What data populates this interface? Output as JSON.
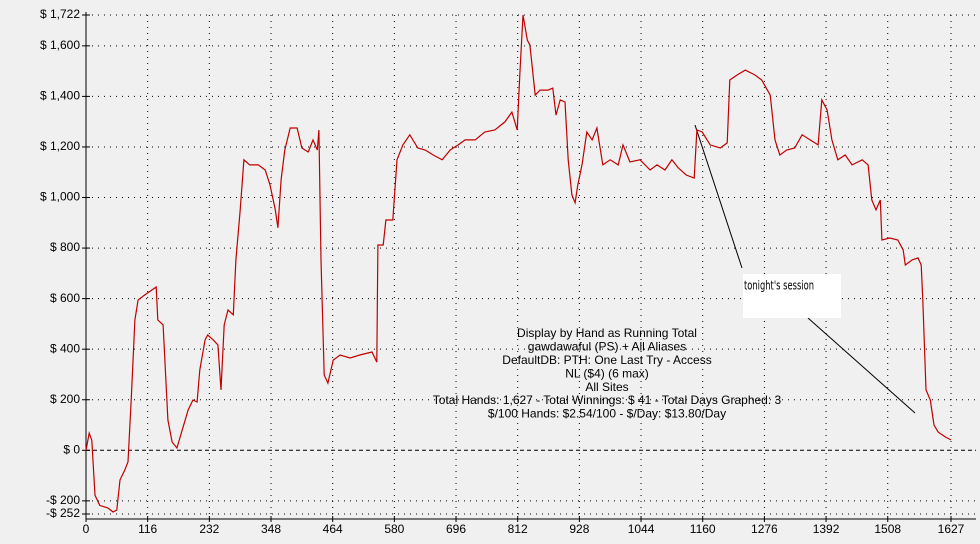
{
  "chart_data": {
    "type": "line",
    "annotations": [
      "Display by Hand as Running Total",
      "gawdawaful (PS) + All Aliases",
      "DefaultDB: PTH: One Last Try - Access",
      "NL ($4) (6 max)",
      "All Sites",
      "Total Hands: 1,627 - Total Winnings: $ 41 - Total Days Graphed: 3",
      "$/100 Hands: $2.54/100 - $/Day: $13.80/Day"
    ],
    "callout": "tonight's session",
    "xlim": [
      0,
      1627
    ],
    "xticks": [
      0,
      116,
      232,
      348,
      464,
      580,
      696,
      812,
      928,
      1044,
      1160,
      1276,
      1392,
      1508,
      1627
    ],
    "ylim": [
      -252,
      1722
    ],
    "yticks": [
      {
        "value": -252,
        "label": "-$ 252"
      },
      {
        "value": -200,
        "label": "-$ 200"
      },
      {
        "value": 0,
        "label": "$ 0"
      },
      {
        "value": 200,
        "label": "$ 200"
      },
      {
        "value": 400,
        "label": "$ 400"
      },
      {
        "value": 600,
        "label": "$ 600"
      },
      {
        "value": 800,
        "label": "$ 800"
      },
      {
        "value": 1000,
        "label": "$ 1,000"
      },
      {
        "value": 1200,
        "label": "$ 1,200"
      },
      {
        "value": 1400,
        "label": "$ 1,400"
      },
      {
        "value": 1600,
        "label": "$ 1,600"
      },
      {
        "value": 1722,
        "label": "$ 1,722"
      }
    ],
    "grid": true,
    "series": [
      {
        "color": "#c00000",
        "x": [
          0,
          6,
          11,
          17,
          26,
          41,
          51,
          58,
          64,
          73,
          79,
          85,
          92,
          98,
          111,
          124,
          132,
          135,
          145,
          154,
          162,
          171,
          181,
          192,
          201,
          209,
          214,
          224,
          229,
          239,
          248,
          254,
          260,
          267,
          277,
          282,
          290,
          297,
          308,
          324,
          337,
          346,
          356,
          361,
          367,
          374,
          384,
          397,
          406,
          418,
          427,
          435,
          438,
          442,
          448,
          455,
          465,
          478,
          497,
          515,
          538,
          547,
          549,
          559,
          564,
          577,
          585,
          596,
          609,
          624,
          638,
          653,
          670,
          685,
          700,
          713,
          732,
          750,
          769,
          788,
          801,
          811,
          816,
          822,
          830,
          835,
          845,
          854,
          869,
          878,
          884,
          892,
          901,
          907,
          914,
          920,
          925,
          933,
          942,
          952,
          961,
          972,
          986,
          1001,
          1010,
          1023,
          1042,
          1061,
          1074,
          1089,
          1102,
          1114,
          1129,
          1144,
          1149,
          1159,
          1174,
          1193,
          1206,
          1211,
          1225,
          1240,
          1258,
          1271,
          1287,
          1296,
          1305,
          1318,
          1333,
          1347,
          1362,
          1377,
          1384,
          1394,
          1403,
          1414,
          1428,
          1441,
          1460,
          1471,
          1478,
          1486,
          1494,
          1497,
          1512,
          1527,
          1537,
          1541,
          1554,
          1565,
          1571,
          1574,
          1580,
          1588,
          1595,
          1603,
          1616,
          1627
        ],
        "values": [
          0,
          68,
          40,
          -178,
          -218,
          -228,
          -244,
          -236,
          -117,
          -78,
          -46,
          199,
          516,
          595,
          615,
          634,
          646,
          516,
          496,
          120,
          33,
          9,
          80,
          159,
          199,
          191,
          318,
          437,
          456,
          437,
          417,
          239,
          496,
          555,
          536,
          753,
          951,
          1149,
          1129,
          1129,
          1109,
          1050,
          951,
          880,
          1070,
          1188,
          1275,
          1275,
          1196,
          1180,
          1228,
          1188,
          1267,
          753,
          298,
          266,
          357,
          377,
          365,
          377,
          389,
          349,
          812,
          812,
          911,
          911,
          1149,
          1208,
          1248,
          1196,
          1188,
          1168,
          1149,
          1188,
          1208,
          1228,
          1228,
          1259,
          1267,
          1299,
          1338,
          1267,
          1485,
          1722,
          1623,
          1603,
          1405,
          1425,
          1425,
          1433,
          1326,
          1386,
          1378,
          1149,
          1010,
          979,
          1050,
          1129,
          1259,
          1228,
          1275,
          1129,
          1149,
          1129,
          1208,
          1141,
          1149,
          1109,
          1129,
          1109,
          1149,
          1117,
          1089,
          1077,
          1267,
          1259,
          1208,
          1196,
          1216,
          1465,
          1485,
          1504,
          1485,
          1465,
          1405,
          1228,
          1168,
          1188,
          1196,
          1248,
          1228,
          1208,
          1386,
          1346,
          1228,
          1149,
          1168,
          1129,
          1149,
          1129,
          990,
          951,
          990,
          832,
          840,
          832,
          792,
          733,
          753,
          761,
          733,
          595,
          239,
          199,
          100,
          72,
          53,
          41
        ]
      }
    ]
  }
}
